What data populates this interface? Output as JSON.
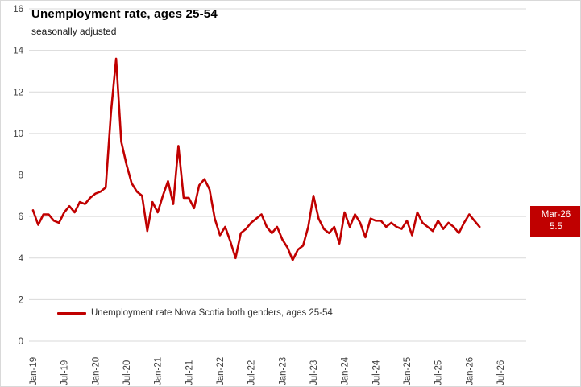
{
  "header": {
    "title": "Unemployment rate, ages 25-54",
    "subtitle": "seasonally adjusted"
  },
  "legend": {
    "label": "Unemployment rate Nova Scotia both genders, ages 25-54"
  },
  "chart_data": {
    "type": "line",
    "title": "Unemployment rate, ages 25-54",
    "subtitle": "seasonally adjusted",
    "start_month": "Jan-19",
    "end_month": "Mar-26",
    "frequency": "monthly",
    "ylim": [
      0,
      16
    ],
    "yticks": [
      0,
      2,
      4,
      6,
      8,
      10,
      12,
      14,
      16
    ],
    "grid": "horizontal",
    "x_tick_labels": [
      "Jan-19",
      "Jul-19",
      "Jan-20",
      "Jul-20",
      "Jan-21",
      "Jul-21",
      "Jan-22",
      "Jul-22",
      "Jan-23",
      "Jul-23",
      "Jan-24",
      "Jul-24",
      "Jan-25",
      "Jul-25",
      "Jan-26",
      "Jul-26"
    ],
    "series": [
      {
        "name": "Unemployment rate Nova Scotia both genders, ages 25-54",
        "color": "#C00000",
        "values": [
          6.3,
          5.6,
          6.1,
          6.1,
          5.8,
          5.7,
          6.2,
          6.5,
          6.2,
          6.7,
          6.6,
          6.9,
          7.1,
          7.2,
          7.4,
          11.0,
          13.6,
          9.6,
          8.5,
          7.6,
          7.2,
          7.0,
          5.3,
          6.7,
          6.2,
          7.0,
          7.7,
          6.6,
          9.4,
          6.9,
          6.9,
          6.4,
          7.5,
          7.8,
          7.3,
          5.9,
          5.1,
          5.5,
          4.8,
          4.0,
          5.2,
          5.4,
          5.7,
          5.9,
          6.1,
          5.5,
          5.2,
          5.5,
          4.9,
          4.5,
          3.9,
          4.4,
          4.6,
          5.5,
          7.0,
          5.9,
          5.4,
          5.2,
          5.5,
          4.7,
          6.2,
          5.5,
          6.1,
          5.7,
          5.0,
          5.9,
          5.8,
          5.8,
          5.5,
          5.7,
          5.5,
          5.4,
          5.8,
          5.1,
          6.2,
          5.7,
          5.5,
          5.3,
          5.8,
          5.4,
          5.7,
          5.5,
          5.2,
          5.7,
          6.1,
          5.8,
          5.5
        ]
      }
    ],
    "legend_position": "bottom-left",
    "callout": {
      "label": "Mar-26",
      "value": "5.5",
      "bg": "#C00000",
      "text_color": "#FFFFFF"
    }
  },
  "colors": {
    "gridline": "#d9d9d9",
    "axis_text": "#404040",
    "series": "#C00000"
  }
}
